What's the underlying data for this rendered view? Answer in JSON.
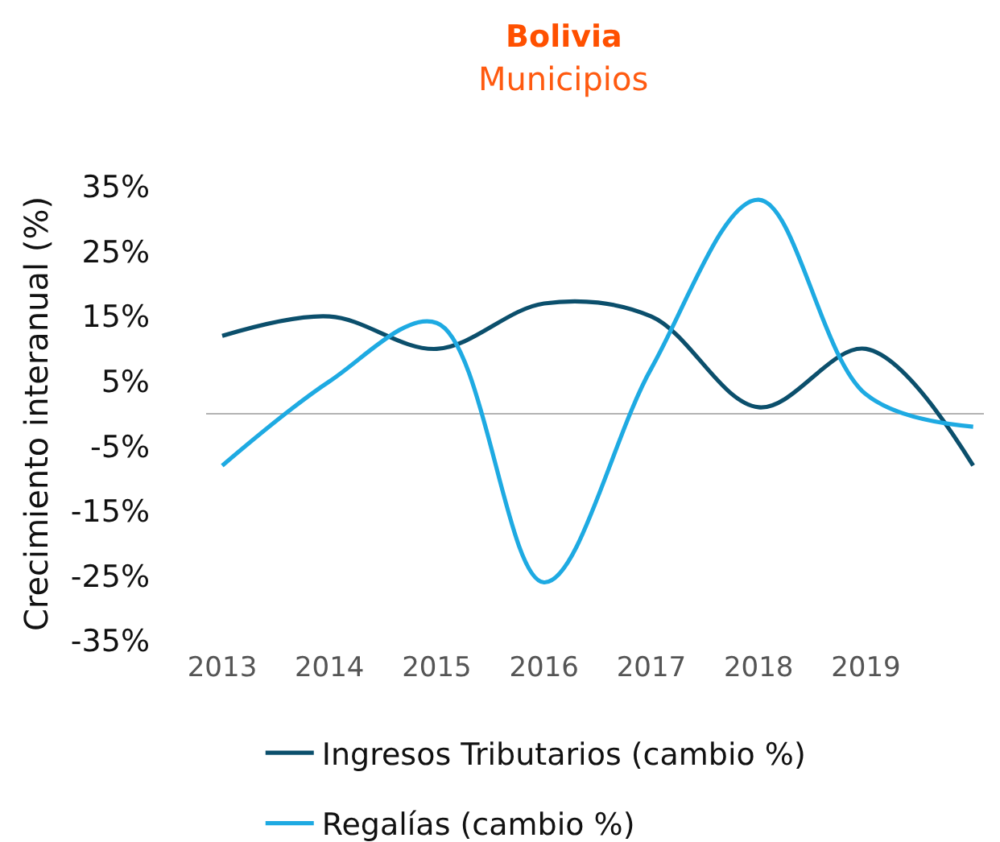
{
  "chart_data": {
    "type": "line",
    "title": "Bolivia",
    "subtitle": "Municipios",
    "ylabel": "Crecimiento interanual (%)",
    "categories": [
      "2013",
      "2014",
      "2015",
      "2016",
      "2017",
      "2018",
      "2019",
      null
    ],
    "series": [
      {
        "name": "Ingresos Tributarios (cambio %)",
        "color": "#0b4f6c",
        "values": [
          12,
          15,
          10,
          17,
          15,
          1,
          10,
          -8
        ]
      },
      {
        "name": "Regalías (cambio %)",
        "color": "#1eaae2",
        "values": [
          -8,
          5,
          14,
          -26,
          7,
          33,
          3,
          -2
        ]
      }
    ],
    "ylim": [
      -35,
      35
    ],
    "yticks": [
      {
        "value": -35,
        "label": "-35%"
      },
      {
        "value": -25,
        "label": "-25%"
      },
      {
        "value": -15,
        "label": "-15%"
      },
      {
        "value": -5,
        "label": "-5%"
      },
      {
        "value": 5,
        "label": "5%"
      },
      {
        "value": 15,
        "label": "15%"
      },
      {
        "value": 25,
        "label": "25%"
      },
      {
        "value": 35,
        "label": "35%"
      }
    ],
    "ref_lines": [
      {
        "axis": "y",
        "value": 0,
        "color": "#b3b3b3"
      }
    ],
    "grid": false,
    "legend": "bottom",
    "marker": "none",
    "line_style": "solid"
  }
}
